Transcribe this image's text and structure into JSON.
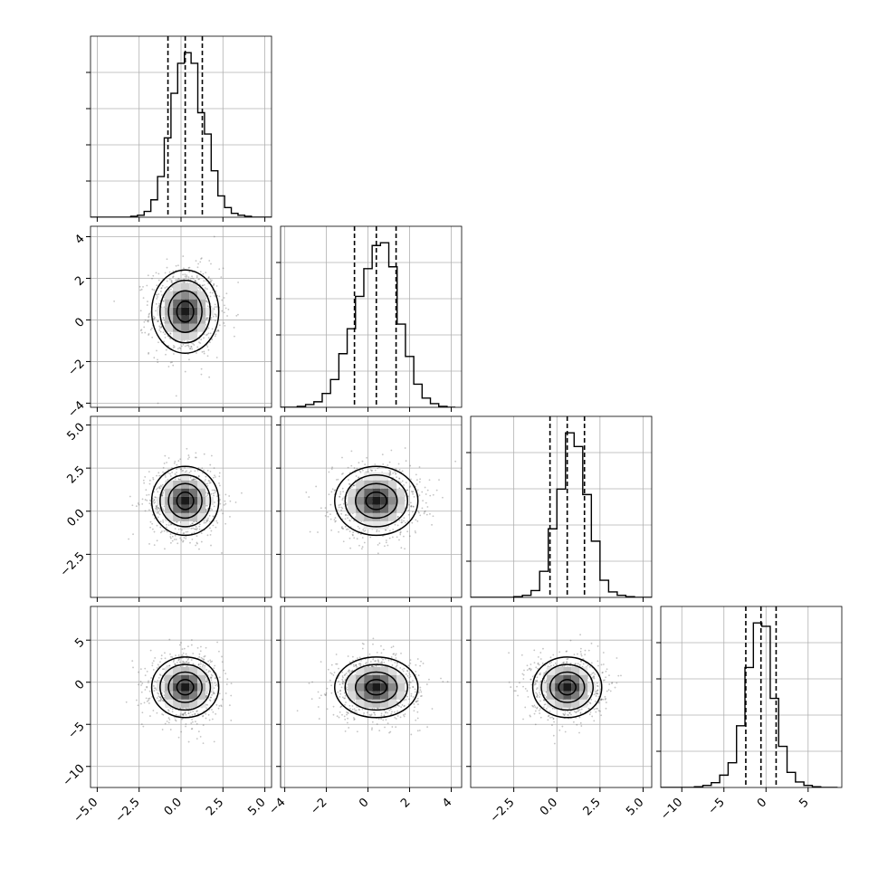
{
  "chart_data": {
    "type": "corner",
    "grid": true,
    "color": "#000000",
    "contour_levels": [
      0.39,
      0.86,
      0.99
    ],
    "variables": [
      {
        "range": [
          -5.4,
          5.4
        ],
        "ticks": [
          -5.0,
          -2.5,
          0.0,
          2.5,
          5.0
        ],
        "tick_labels": [
          "−5.0",
          "−2.5",
          "0.0",
          "2.5",
          "5.0"
        ],
        "mean": 0.25,
        "std": 1.0,
        "quantiles": [
          -0.78,
          0.25,
          1.27
        ],
        "hist_bins": [
          -5.4,
          -5.0,
          -4.6,
          -4.2,
          -3.8,
          -3.4,
          -3.0,
          -2.6,
          -2.2,
          -1.8,
          -1.4,
          -1.0,
          -0.6,
          -0.2,
          0.2,
          0.6,
          1.0,
          1.4,
          1.8,
          2.2,
          2.6,
          3.0,
          3.4,
          3.8,
          4.2,
          4.6,
          5.0,
          5.4
        ],
        "hist_counts": [
          0,
          0,
          0,
          0,
          0,
          0,
          1,
          2,
          6,
          18,
          42,
          82,
          128,
          159,
          170,
          159,
          108,
          86,
          48,
          22,
          10,
          4,
          2,
          1,
          0,
          0,
          0
        ]
      },
      {
        "range": [
          -4.2,
          4.5
        ],
        "ticks": [
          -4,
          -2,
          0,
          2,
          4
        ],
        "tick_labels": [
          "−4",
          "−2",
          "0",
          "2",
          "4"
        ],
        "mean": 0.4,
        "std": 1.0,
        "quantiles": [
          -0.65,
          0.4,
          1.35
        ],
        "hist_bins": [
          -4.2,
          -3.8,
          -3.4,
          -3.0,
          -2.6,
          -2.2,
          -1.8,
          -1.4,
          -1.0,
          -0.6,
          -0.2,
          0.2,
          0.6,
          1.0,
          1.4,
          1.8,
          2.2,
          2.6,
          3.0,
          3.4,
          3.8,
          4.2
        ],
        "hist_counts": [
          0,
          0,
          1,
          3,
          6,
          15,
          30,
          58,
          85,
          120,
          150,
          175,
          178,
          152,
          90,
          55,
          25,
          10,
          4,
          1,
          0
        ]
      },
      {
        "range": [
          -5.0,
          5.5
        ],
        "ticks": [
          -2.5,
          0.0,
          2.5,
          5.0
        ],
        "tick_labels": [
          "−2.5",
          "0.0",
          "2.5",
          "5.0"
        ],
        "mean": 0.6,
        "std": 1.0,
        "quantiles": [
          -0.4,
          0.6,
          1.6
        ],
        "hist_bins": [
          -5.0,
          -4.5,
          -4.0,
          -3.5,
          -3.0,
          -2.5,
          -2.0,
          -1.5,
          -1.0,
          -0.5,
          0.0,
          0.5,
          1.0,
          1.5,
          2.0,
          2.5,
          3.0,
          3.5,
          4.0,
          4.5,
          5.0,
          5.5
        ],
        "hist_counts": [
          0,
          0,
          0,
          0,
          0,
          1,
          3,
          10,
          38,
          100,
          158,
          240,
          220,
          150,
          82,
          25,
          8,
          3,
          1,
          0,
          0
        ]
      },
      {
        "range": [
          -12.5,
          9.0
        ],
        "ticks": [
          -10,
          -5,
          0,
          5
        ],
        "tick_labels": [
          "−10",
          "−5",
          "0",
          "5"
        ],
        "mean": -0.6,
        "std": 1.8,
        "quantiles": [
          -2.4,
          -0.6,
          1.2
        ],
        "hist_bins": [
          -12.5,
          -11.5,
          -10.5,
          -9.5,
          -8.5,
          -7.5,
          -6.5,
          -5.5,
          -4.5,
          -3.5,
          -2.5,
          -1.5,
          -0.5,
          0.5,
          1.5,
          2.5,
          3.5,
          4.5,
          5.5,
          6.5,
          7.5,
          8.5
        ],
        "hist_counts": [
          0,
          0,
          0,
          0,
          1,
          3,
          7,
          18,
          36,
          90,
          175,
          240,
          235,
          130,
          60,
          22,
          8,
          3,
          1,
          0,
          0
        ]
      }
    ],
    "row_ticks": [
      {
        "ticks": [
          -4,
          -2,
          0,
          2,
          4
        ],
        "tick_labels": [
          "−4",
          "−2",
          "0",
          "2",
          "4"
        ]
      },
      {
        "ticks": [
          -2.5,
          0.0,
          2.5,
          5.0
        ],
        "tick_labels": [
          "−2.5",
          "0.0",
          "2.5",
          "5.0"
        ]
      },
      {
        "ticks": [
          -10,
          -5,
          0,
          5
        ],
        "tick_labels": [
          "−10",
          "−5",
          "0",
          "5"
        ]
      }
    ]
  }
}
